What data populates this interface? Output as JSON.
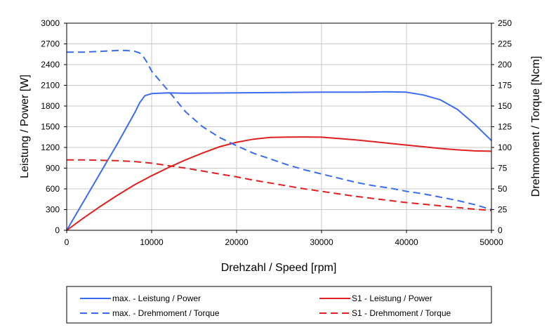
{
  "chart_data": {
    "type": "line",
    "title": "",
    "xlabel": "Drehzahl / Speed [rpm]",
    "ylabel_left": "Leistung / Power [W]",
    "ylabel_right": "Drehmoment / Torque [Ncm]",
    "xlim": [
      0,
      50000
    ],
    "ylim_left": [
      0,
      3000
    ],
    "ylim_right": [
      0,
      250
    ],
    "x_ticks": [
      0,
      10000,
      20000,
      30000,
      40000,
      50000
    ],
    "x_tick_labels": [
      "0",
      "10000",
      "20000",
      "30000",
      "40000",
      "50000"
    ],
    "y_left_ticks": [
      0,
      300,
      600,
      900,
      1200,
      1500,
      1800,
      2100,
      2400,
      2700,
      3000
    ],
    "y_left_tick_labels": [
      "0",
      "300",
      "600",
      "900",
      "1200",
      "1500",
      "1800",
      "2100",
      "2400",
      "2700",
      "3000"
    ],
    "y_right_ticks": [
      0,
      25,
      50,
      75,
      100,
      125,
      150,
      175,
      200,
      225,
      250
    ],
    "y_right_tick_labels": [
      "0",
      "25",
      "50",
      "75",
      "100",
      "125",
      "150",
      "175",
      "200",
      "225",
      "250"
    ],
    "grid": true,
    "legend_position": "bottom",
    "series": [
      {
        "name": "max. - Leistung / Power",
        "axis": "left",
        "color": "#3b6cf0",
        "dash": "solid",
        "x": [
          0,
          2000,
          4000,
          6000,
          8000,
          8600,
          9200,
          10000,
          12000,
          14000,
          20000,
          25000,
          30000,
          35000,
          37500,
          40000,
          42000,
          44000,
          46000,
          48000,
          50000
        ],
        "y": [
          0,
          420,
          840,
          1260,
          1700,
          1850,
          1950,
          1980,
          1990,
          1985,
          1990,
          1995,
          2000,
          2000,
          2005,
          2000,
          1960,
          1890,
          1750,
          1540,
          1300
        ]
      },
      {
        "name": "S1 - Leistung / Power",
        "axis": "left",
        "color": "#e02020",
        "dash": "solid",
        "x": [
          0,
          2000,
          4000,
          6000,
          8000,
          10000,
          12000,
          14000,
          16000,
          18000,
          20000,
          22000,
          24000,
          26000,
          28000,
          30000,
          32000,
          34000,
          36000,
          38000,
          40000,
          42000,
          44000,
          46000,
          48000,
          50000
        ],
        "y": [
          0,
          180,
          350,
          510,
          660,
          790,
          910,
          1020,
          1120,
          1210,
          1275,
          1320,
          1345,
          1350,
          1352,
          1348,
          1330,
          1310,
          1285,
          1260,
          1235,
          1210,
          1185,
          1165,
          1150,
          1145
        ]
      },
      {
        "name": "max. - Drehmoment / Torque",
        "axis": "right",
        "color": "#3b6cf0",
        "dash": "dashed",
        "x": [
          0,
          2000,
          4000,
          6000,
          7000,
          8000,
          8600,
          9000,
          9500,
          10000,
          11000,
          12000,
          14000,
          16000,
          18000,
          20000,
          22000,
          24000,
          26000,
          28000,
          30000,
          32000,
          34000,
          36000,
          38000,
          40000,
          42000,
          44000,
          46000,
          48000,
          50000
        ],
        "y": [
          215,
          215,
          216,
          217,
          217,
          216,
          214,
          210,
          202,
          192,
          180,
          168,
          143,
          125,
          112,
          102,
          93,
          86,
          79,
          73,
          68,
          63,
          58,
          54,
          51,
          47,
          44,
          40,
          36,
          31,
          25
        ]
      },
      {
        "name": "S1 - Drehmoment / Torque",
        "axis": "right",
        "color": "#e02020",
        "dash": "dashed",
        "x": [
          0,
          2000,
          4000,
          6000,
          8000,
          10000,
          12000,
          14000,
          16000,
          18000,
          20000,
          22000,
          24000,
          26000,
          28000,
          30000,
          32000,
          34000,
          36000,
          38000,
          40000,
          42000,
          44000,
          46000,
          48000,
          50000
        ],
        "y": [
          85,
          85,
          84.5,
          84,
          83,
          81,
          78,
          75,
          71.5,
          68,
          64.5,
          60.5,
          57,
          53.5,
          50,
          47,
          44,
          41,
          38.5,
          36,
          33.5,
          31.5,
          29.5,
          27.5,
          25.5,
          24
        ]
      }
    ]
  }
}
